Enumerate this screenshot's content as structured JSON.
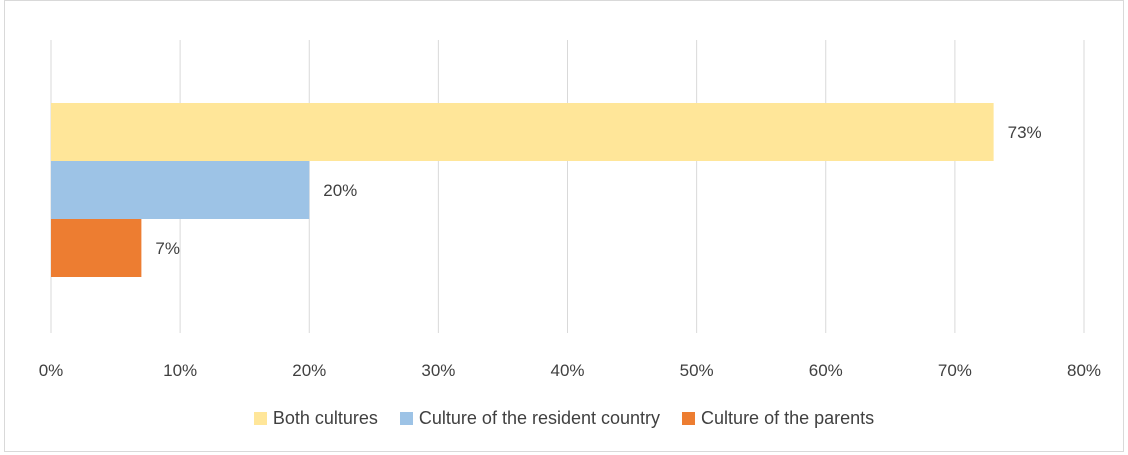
{
  "chart_data": {
    "type": "bar",
    "orientation": "horizontal",
    "xlim": [
      0,
      80
    ],
    "x_ticks": [
      "0%",
      "10%",
      "20%",
      "30%",
      "40%",
      "50%",
      "60%",
      "70%",
      "80%"
    ],
    "grid": "vertical",
    "legend_position": "bottom",
    "series": [
      {
        "name": "Both cultures",
        "value": 73,
        "label": "73%",
        "color": "#FFE699"
      },
      {
        "name": "Culture of the resident country",
        "value": 20,
        "label": "20%",
        "color": "#9DC3E6"
      },
      {
        "name": "Culture of the parents",
        "value": 7,
        "label": "7%",
        "color": "#ED7D31"
      }
    ]
  }
}
